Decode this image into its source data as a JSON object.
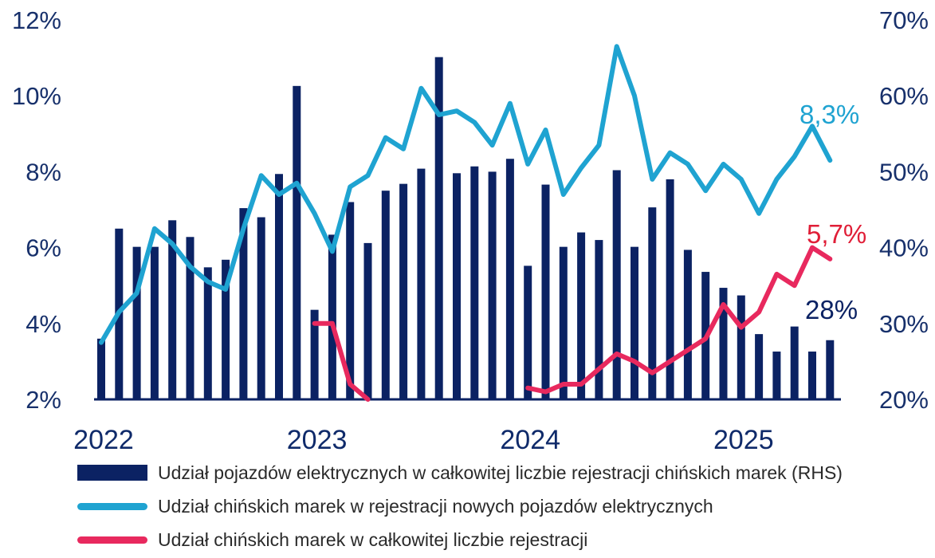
{
  "chart_data": {
    "type": "bar-line-combo",
    "x_labels": [
      "2022",
      "2023",
      "2024",
      "2025"
    ],
    "x_label_month_index": [
      0,
      12,
      24,
      36
    ],
    "months": 42,
    "y_left": {
      "ticks": [
        "2%",
        "4%",
        "6%",
        "8%",
        "10%",
        "12%"
      ],
      "range": [
        2,
        12
      ]
    },
    "y_right": {
      "ticks": [
        "20%",
        "30%",
        "40%",
        "50%",
        "60%",
        "70%"
      ],
      "range": [
        20,
        70
      ]
    },
    "colors": {
      "bars": "#0b2263",
      "cyan": "#1fa3d1",
      "pink": "#e8295e",
      "axis": "#17306b",
      "annot_cyan": "#1fa3d1",
      "annot_red": "#e01e37",
      "annot_dark": "#0b2263"
    },
    "series": [
      {
        "name": "Udział pojazdów elektrycznych w całkowitej liczbie rejestracji chińskich marek (RHS)",
        "type": "bar",
        "axis": "right",
        "values": [
          28,
          42.5,
          40.1,
          40.1,
          43.6,
          41.4,
          37.4,
          38.4,
          45.2,
          44.0,
          49.7,
          61.3,
          31.8,
          41.7,
          46.0,
          40.6,
          47.5,
          48.4,
          50.4,
          65.1,
          49.8,
          50.7,
          50.0,
          51.7,
          37.6,
          48.3,
          40.1,
          42.0,
          41.0,
          50.2,
          40.1,
          45.3,
          49.0,
          39.7,
          36.8,
          34.7,
          33.7,
          28.6,
          26.3,
          29.6,
          26.3,
          27.8
        ]
      },
      {
        "name": "Udział chińskich marek w rejestracji nowych pojazdów elektrycznych",
        "type": "line",
        "axis": "left",
        "values": [
          3.5,
          4.3,
          4.8,
          6.5,
          6.1,
          5.5,
          5.1,
          4.9,
          6.5,
          7.9,
          7.4,
          7.7,
          6.9,
          5.9,
          7.6,
          7.9,
          8.9,
          8.6,
          10.2,
          9.5,
          9.6,
          9.3,
          8.7,
          9.8,
          8.2,
          9.1,
          7.4,
          8.1,
          8.7,
          11.3,
          10.0,
          7.8,
          8.5,
          8.2,
          7.5,
          8.2,
          7.8,
          6.9,
          7.8,
          8.4,
          9.2,
          8.3
        ]
      },
      {
        "name": "Udział chińskich marek w całkowitej liczbie rejestracji",
        "type": "line",
        "axis": "left",
        "segments": [
          {
            "start": 12,
            "values": [
              4.0,
              4.0,
              2.4,
              2.0
            ]
          },
          {
            "start": 24,
            "values": [
              2.3,
              2.2,
              2.4,
              2.4,
              2.8,
              3.2,
              3.0,
              2.7,
              3.0,
              3.3,
              3.6,
              4.5,
              3.9,
              4.3,
              5.3,
              5.0,
              6.0,
              5.7
            ]
          }
        ]
      }
    ],
    "annotations": [
      {
        "text": "8,3%",
        "color_key": "annot_cyan"
      },
      {
        "text": "5,7%",
        "color_key": "annot_red"
      },
      {
        "text": "28%",
        "color_key": "annot_dark"
      }
    ]
  }
}
